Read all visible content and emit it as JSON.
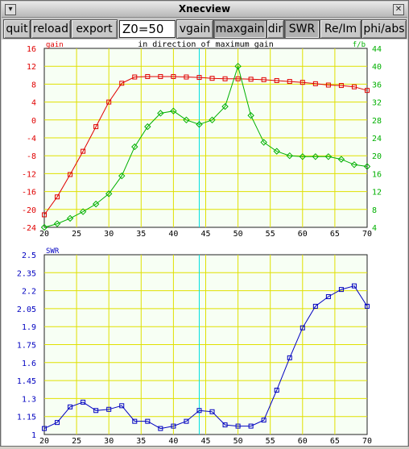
{
  "window": {
    "title": "Xnecview"
  },
  "icons": {
    "menu": "window-menu-icon",
    "close": "close-window-icon"
  },
  "toolbar": {
    "quit": "quit",
    "reload": "reload",
    "export": "export",
    "z0_value": "Z0=50",
    "vgain": "vgain",
    "maxgain": "maxgain",
    "dir": "dir",
    "swr": "SWR",
    "reim": "Re/Im",
    "phiabs": "phi/abs"
  },
  "colors": {
    "gain": "#e00000",
    "fb": "#00b000",
    "swr": "#0000c0",
    "grid": "#e0e000",
    "cursor": "#00e0e0"
  },
  "chart_data": [
    {
      "type": "line",
      "title": "in direction of maximum gain",
      "left_axis_label": "gain",
      "right_axis_label": "f/b",
      "x_ticks": [
        "20",
        "25",
        "30",
        "35",
        "40",
        "45",
        "50",
        "55",
        "60",
        "65",
        "70"
      ],
      "left_ticks": [
        "16",
        "12",
        "8",
        "4",
        "0",
        "-4",
        "-8",
        "-12",
        "-16",
        "-20",
        "-24"
      ],
      "right_ticks": [
        "44",
        "40",
        "36",
        "32",
        "28",
        "24",
        "20",
        "16",
        "12",
        "8",
        "4"
      ],
      "xlim": [
        20,
        70
      ],
      "ylim_left": [
        -24,
        16
      ],
      "ylim_right": [
        4,
        44
      ],
      "cursor_x": 44,
      "grid": true,
      "series": [
        {
          "axis": "left",
          "marker": "square",
          "x": [
            20,
            22,
            24,
            26,
            28,
            30,
            32,
            34,
            36,
            38,
            40,
            42,
            44,
            46,
            48,
            50,
            52,
            54,
            56,
            58,
            60,
            62,
            64,
            66,
            68,
            70
          ],
          "y": [
            -21.2,
            -17.2,
            -12.2,
            -7.0,
            -1.5,
            4.0,
            8.2,
            9.6,
            9.7,
            9.7,
            9.7,
            9.6,
            9.5,
            9.3,
            9.2,
            9.2,
            9.1,
            9.0,
            8.8,
            8.6,
            8.4,
            8.1,
            7.8,
            7.7,
            7.4,
            6.6
          ]
        },
        {
          "axis": "right",
          "marker": "diamond",
          "x": [
            20,
            22,
            24,
            26,
            28,
            30,
            32,
            34,
            36,
            38,
            40,
            42,
            44,
            46,
            48,
            50,
            52,
            54,
            56,
            58,
            60,
            62,
            64,
            66,
            68,
            70
          ],
          "y": [
            4.0,
            4.8,
            6.0,
            7.5,
            9.2,
            11.5,
            15.5,
            22.0,
            26.5,
            29.5,
            30.0,
            28.0,
            27.0,
            28.0,
            31.0,
            40.0,
            29.0,
            23.0,
            21.0,
            20.0,
            19.8,
            19.8,
            19.8,
            19.2,
            18.0,
            17.6
          ]
        }
      ]
    },
    {
      "type": "line",
      "left_axis_label": "SWR",
      "x_ticks": [
        "20",
        "25",
        "30",
        "35",
        "40",
        "45",
        "50",
        "55",
        "60",
        "65",
        "70"
      ],
      "left_ticks": [
        "2.5",
        "2.35",
        "2.2",
        "2.05",
        "1.9",
        "1.75",
        "1.6",
        "1.45",
        "1.3",
        "1.15",
        "1"
      ],
      "xlim": [
        20,
        70
      ],
      "ylim": [
        1,
        2.5
      ],
      "cursor_x": 44,
      "grid": true,
      "series": [
        {
          "marker": "square",
          "x": [
            20,
            22,
            24,
            26,
            28,
            30,
            32,
            34,
            36,
            38,
            40,
            42,
            44,
            46,
            48,
            50,
            52,
            54,
            56,
            58,
            60,
            62,
            64,
            66,
            68,
            70
          ],
          "y": [
            1.05,
            1.1,
            1.23,
            1.27,
            1.2,
            1.21,
            1.24,
            1.11,
            1.11,
            1.05,
            1.07,
            1.11,
            1.2,
            1.19,
            1.08,
            1.07,
            1.07,
            1.12,
            1.37,
            1.64,
            1.89,
            2.07,
            2.15,
            2.21,
            2.24,
            2.07
          ]
        }
      ]
    }
  ]
}
